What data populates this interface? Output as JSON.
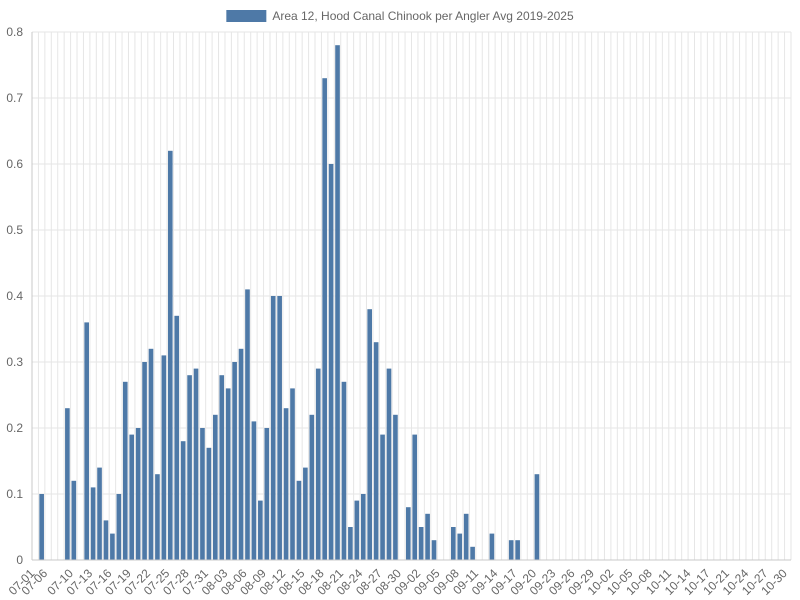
{
  "chart_data": {
    "type": "bar",
    "legend": {
      "label": "Area 12, Hood Canal Chinook per Angler Avg 2019-2025",
      "position": "top-center"
    },
    "series": [
      {
        "name": "Area 12, Hood Canal Chinook per Angler Avg 2019-2025",
        "color": "#4e79a7"
      }
    ],
    "ylim": [
      0,
      0.8
    ],
    "yticks": [
      "0",
      "0.1",
      "0.2",
      "0.3",
      "0.4",
      "0.5",
      "0.6",
      "0.7",
      "0.8"
    ],
    "grid": true,
    "x_tick_labels": [
      "07-01",
      "07-06",
      "07-10",
      "07-13",
      "07-16",
      "07-19",
      "07-22",
      "07-25",
      "07-28",
      "07-31",
      "08-03",
      "08-06",
      "08-09",
      "08-12",
      "08-15",
      "08-18",
      "08-21",
      "08-24",
      "08-27",
      "08-30",
      "09-02",
      "09-05",
      "09-08",
      "09-11",
      "09-14",
      "09-17",
      "09-20",
      "09-23",
      "09-26",
      "09-29",
      "10-02",
      "10-05",
      "10-08",
      "10-11",
      "10-14",
      "10-17",
      "10-21",
      "10-24",
      "10-27",
      "10-30"
    ],
    "points": [
      {
        "x": "07-01",
        "y": 0
      },
      {
        "x": "07-03",
        "y": 0.1
      },
      {
        "x": "07-06",
        "y": 0
      },
      {
        "x": "07-07",
        "y": 0
      },
      {
        "x": "07-08",
        "y": 0
      },
      {
        "x": "07-09",
        "y": 0.23
      },
      {
        "x": "07-10",
        "y": 0.12
      },
      {
        "x": "07-11",
        "y": 0
      },
      {
        "x": "07-12",
        "y": 0.36
      },
      {
        "x": "07-13",
        "y": 0.11
      },
      {
        "x": "07-14",
        "y": 0.14
      },
      {
        "x": "07-15",
        "y": 0.06
      },
      {
        "x": "07-16",
        "y": 0.04
      },
      {
        "x": "07-17",
        "y": 0.1
      },
      {
        "x": "07-18",
        "y": 0.27
      },
      {
        "x": "07-19",
        "y": 0.19
      },
      {
        "x": "07-20",
        "y": 0.2
      },
      {
        "x": "07-21",
        "y": 0.3
      },
      {
        "x": "07-22",
        "y": 0.32
      },
      {
        "x": "07-23",
        "y": 0.13
      },
      {
        "x": "07-24",
        "y": 0.31
      },
      {
        "x": "07-25",
        "y": 0.62
      },
      {
        "x": "07-26",
        "y": 0.37
      },
      {
        "x": "07-27",
        "y": 0.18
      },
      {
        "x": "07-28",
        "y": 0.28
      },
      {
        "x": "07-29",
        "y": 0.29
      },
      {
        "x": "07-30",
        "y": 0.2
      },
      {
        "x": "07-31",
        "y": 0.17
      },
      {
        "x": "08-01",
        "y": 0.22
      },
      {
        "x": "08-02",
        "y": 0.28
      },
      {
        "x": "08-03",
        "y": 0.26
      },
      {
        "x": "08-04",
        "y": 0.3
      },
      {
        "x": "08-05",
        "y": 0.32
      },
      {
        "x": "08-06",
        "y": 0.41
      },
      {
        "x": "08-07",
        "y": 0.21
      },
      {
        "x": "08-08",
        "y": 0.09
      },
      {
        "x": "08-09",
        "y": 0.2
      },
      {
        "x": "08-10",
        "y": 0.4
      },
      {
        "x": "08-11",
        "y": 0.4
      },
      {
        "x": "08-12",
        "y": 0.23
      },
      {
        "x": "08-13",
        "y": 0.26
      },
      {
        "x": "08-14",
        "y": 0.12
      },
      {
        "x": "08-15",
        "y": 0.14
      },
      {
        "x": "08-16",
        "y": 0.22
      },
      {
        "x": "08-17",
        "y": 0.29
      },
      {
        "x": "08-18",
        "y": 0.73
      },
      {
        "x": "08-19",
        "y": 0.6
      },
      {
        "x": "08-20",
        "y": 0.78
      },
      {
        "x": "08-21",
        "y": 0.27
      },
      {
        "x": "08-22",
        "y": 0.05
      },
      {
        "x": "08-23",
        "y": 0.09
      },
      {
        "x": "08-24",
        "y": 0.1
      },
      {
        "x": "08-25",
        "y": 0.38
      },
      {
        "x": "08-26",
        "y": 0.33
      },
      {
        "x": "08-27",
        "y": 0.19
      },
      {
        "x": "08-28",
        "y": 0.29
      },
      {
        "x": "08-29",
        "y": 0.22
      },
      {
        "x": "08-30",
        "y": 0
      },
      {
        "x": "08-31",
        "y": 0.08
      },
      {
        "x": "09-01",
        "y": 0.19
      },
      {
        "x": "09-02",
        "y": 0.05
      },
      {
        "x": "09-03",
        "y": 0.07
      },
      {
        "x": "09-04",
        "y": 0.03
      },
      {
        "x": "09-05",
        "y": 0
      },
      {
        "x": "09-06",
        "y": 0
      },
      {
        "x": "09-07",
        "y": 0.05
      },
      {
        "x": "09-08",
        "y": 0.04
      },
      {
        "x": "09-09",
        "y": 0.07
      },
      {
        "x": "09-10",
        "y": 0.02
      },
      {
        "x": "09-11",
        "y": 0
      },
      {
        "x": "09-12",
        "y": 0
      },
      {
        "x": "09-13",
        "y": 0.04
      },
      {
        "x": "09-14",
        "y": 0
      },
      {
        "x": "09-15",
        "y": 0
      },
      {
        "x": "09-16",
        "y": 0.03
      },
      {
        "x": "09-17",
        "y": 0.03
      },
      {
        "x": "09-18",
        "y": 0
      },
      {
        "x": "09-19",
        "y": 0
      },
      {
        "x": "09-20",
        "y": 0.13
      },
      {
        "x": "09-21",
        "y": 0
      },
      {
        "x": "09-22",
        "y": 0
      },
      {
        "x": "09-23",
        "y": 0
      },
      {
        "x": "09-24",
        "y": 0
      },
      {
        "x": "09-25",
        "y": 0
      },
      {
        "x": "09-26",
        "y": 0
      },
      {
        "x": "09-27",
        "y": 0
      },
      {
        "x": "09-28",
        "y": 0
      },
      {
        "x": "09-29",
        "y": 0
      },
      {
        "x": "09-30",
        "y": 0
      },
      {
        "x": "10-01",
        "y": 0
      },
      {
        "x": "10-02",
        "y": 0
      },
      {
        "x": "10-03",
        "y": 0
      },
      {
        "x": "10-04",
        "y": 0
      },
      {
        "x": "10-05",
        "y": 0
      },
      {
        "x": "10-06",
        "y": 0
      },
      {
        "x": "10-07",
        "y": 0
      },
      {
        "x": "10-08",
        "y": 0
      },
      {
        "x": "10-09",
        "y": 0
      },
      {
        "x": "10-10",
        "y": 0
      },
      {
        "x": "10-11",
        "y": 0
      },
      {
        "x": "10-12",
        "y": 0
      },
      {
        "x": "10-13",
        "y": 0
      },
      {
        "x": "10-14",
        "y": 0
      },
      {
        "x": "10-15",
        "y": 0
      },
      {
        "x": "10-16",
        "y": 0
      },
      {
        "x": "10-17",
        "y": 0
      },
      {
        "x": "10-19",
        "y": 0
      },
      {
        "x": "10-20",
        "y": 0
      },
      {
        "x": "10-21",
        "y": 0
      },
      {
        "x": "10-22",
        "y": 0
      },
      {
        "x": "10-23",
        "y": 0
      },
      {
        "x": "10-24",
        "y": 0
      },
      {
        "x": "10-25",
        "y": 0
      },
      {
        "x": "10-26",
        "y": 0
      },
      {
        "x": "10-27",
        "y": 0
      },
      {
        "x": "10-28",
        "y": 0
      },
      {
        "x": "10-29",
        "y": 0
      },
      {
        "x": "10-30",
        "y": 0
      }
    ]
  }
}
